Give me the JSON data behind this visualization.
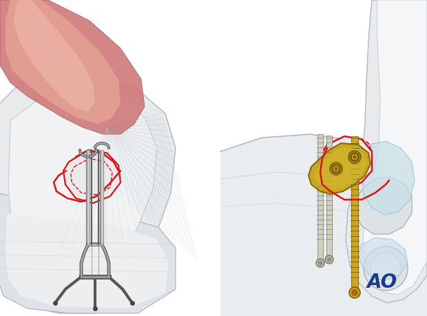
{
  "bg_color": "#ffffff",
  "ao_text": "AO",
  "ao_color": "#1a3a8f",
  "ao_fontsize": 20,
  "fig_width": 6.2,
  "fig_height": 4.59,
  "dpi": 100,
  "red_outline": "#dd1111",
  "wire_color": "#555555",
  "plate_color": "#c8a820",
  "plate_edge": "#8a7010",
  "screw_thread": "#888870",
  "cartilage_color": "#b8dde8",
  "bone_light": "#eaedef",
  "bone_mid": "#d8dde2",
  "bone_dark": "#c5cbd2",
  "muscle_red": "#d07070",
  "muscle_pink": "#e8a898",
  "skin_color": "#ededea"
}
